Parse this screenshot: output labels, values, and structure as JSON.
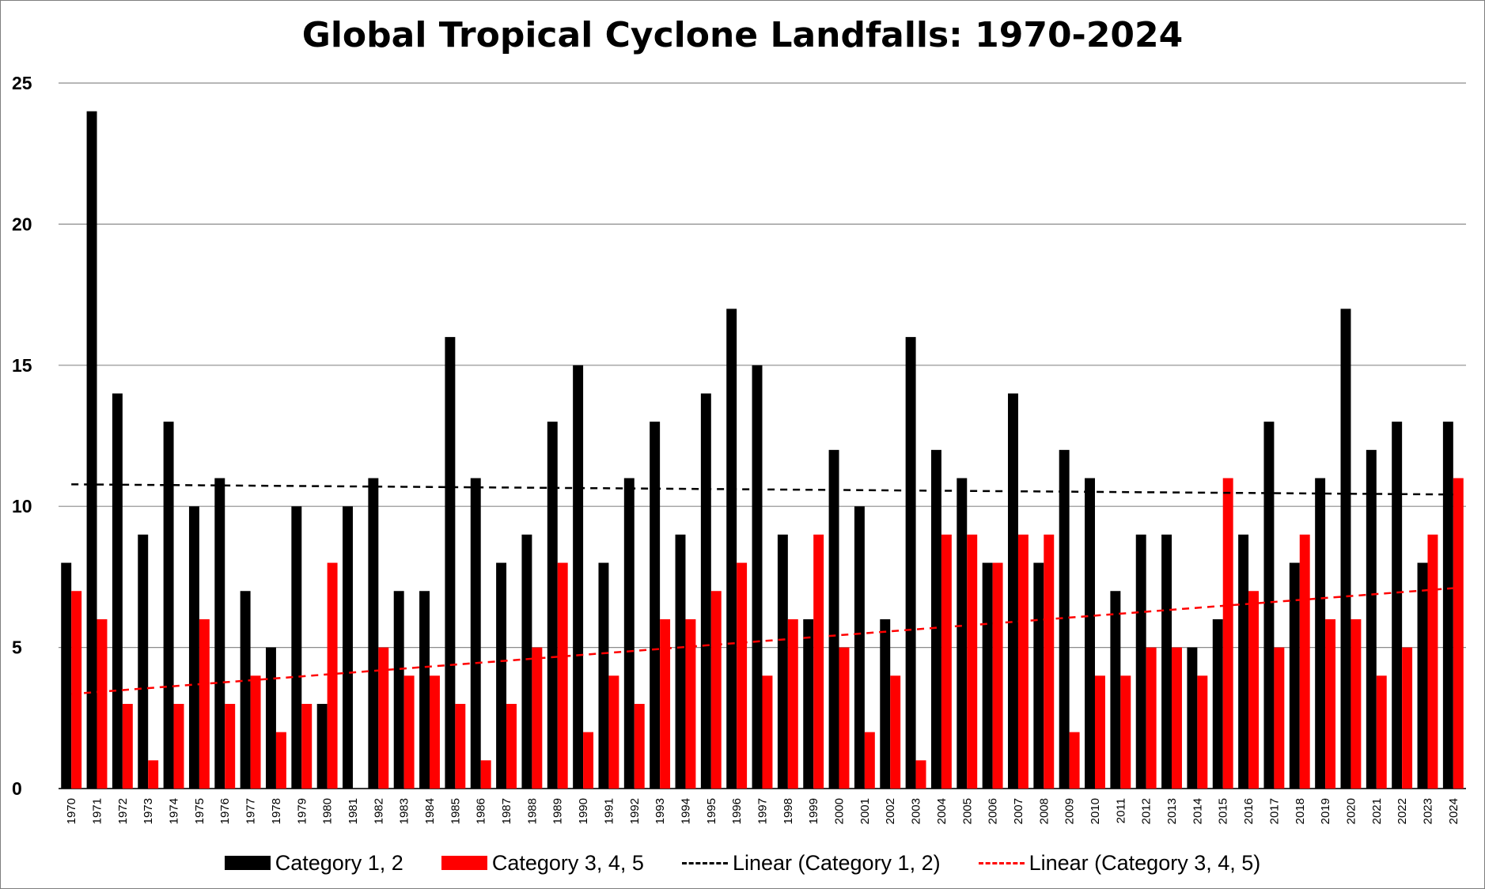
{
  "chart_data": {
    "type": "bar",
    "title": "Global Tropical Cyclone Landfalls: 1970-2024",
    "xlabel": "",
    "ylabel": "",
    "ylim": [
      0,
      25
    ],
    "yticks": [
      0,
      5,
      10,
      15,
      20,
      25
    ],
    "grid": true,
    "legend_position": "bottom",
    "categories": [
      "1970",
      "1971",
      "1972",
      "1973",
      "1974",
      "1975",
      "1976",
      "1977",
      "1978",
      "1979",
      "1980",
      "1981",
      "1982",
      "1983",
      "1984",
      "1985",
      "1986",
      "1987",
      "1988",
      "1989",
      "1990",
      "1991",
      "1992",
      "1993",
      "1994",
      "1995",
      "1996",
      "1997",
      "1998",
      "1999",
      "2000",
      "2001",
      "2002",
      "2003",
      "2004",
      "2005",
      "2006",
      "2007",
      "2008",
      "2009",
      "2010",
      "2011",
      "2012",
      "2013",
      "2014",
      "2015",
      "2016",
      "2017",
      "2018",
      "2019",
      "2020",
      "2021",
      "2022",
      "2023",
      "2024"
    ],
    "series": [
      {
        "name": "Category 1, 2",
        "color": "#000000",
        "values": [
          8,
          24,
          14,
          9,
          13,
          10,
          11,
          7,
          5,
          10,
          3,
          10,
          11,
          7,
          7,
          16,
          11,
          8,
          9,
          13,
          15,
          8,
          11,
          13,
          9,
          14,
          17,
          15,
          9,
          6,
          12,
          10,
          6,
          16,
          12,
          11,
          8,
          14,
          8,
          12,
          11,
          7,
          9,
          9,
          5,
          6,
          9,
          13,
          8,
          11,
          17,
          12,
          13,
          8,
          13
        ]
      },
      {
        "name": "Category 3, 4, 5",
        "color": "#ff0000",
        "values": [
          7,
          6,
          3,
          1,
          3,
          6,
          3,
          4,
          2,
          3,
          8,
          0,
          5,
          4,
          4,
          3,
          1,
          3,
          5,
          8,
          2,
          4,
          3,
          6,
          6,
          7,
          8,
          4,
          6,
          9,
          5,
          2,
          4,
          1,
          9,
          9,
          8,
          9,
          9,
          2,
          4,
          4,
          5,
          5,
          4,
          11,
          7,
          5,
          9,
          6,
          6,
          4,
          5,
          9,
          11
        ]
      }
    ],
    "trendlines": [
      {
        "name": "Linear (Category 1, 2)",
        "color": "#000000",
        "start": 10.78,
        "end": 10.42
      },
      {
        "name": "Linear (Category 3, 4, 5)",
        "color": "#ff0000",
        "start": 3.35,
        "end": 7.1
      }
    ]
  }
}
